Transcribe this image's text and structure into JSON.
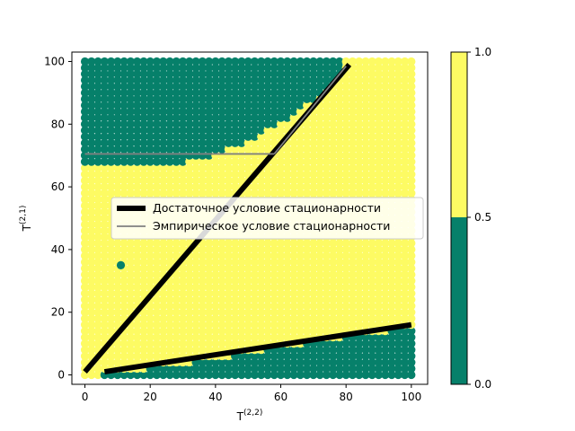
{
  "chart_data": {
    "type": "scatter",
    "xlabel": "T",
    "xlabel_sup": "(2,2)",
    "ylabel": "T",
    "ylabel_sup": "(2,1)",
    "xlim": [
      -4,
      105
    ],
    "ylim": [
      -3,
      103
    ],
    "xticks": [
      0,
      20,
      40,
      60,
      80,
      100
    ],
    "yticks": [
      0,
      20,
      40,
      60,
      80,
      100
    ],
    "grid": false,
    "legend_placement": "center",
    "colors": {
      "stationary": "#fdfb63",
      "nonstationary": "#06806a",
      "sufficient_line": "#000000",
      "empirical_line": "#808080"
    },
    "scatter_grid": {
      "x_range": [
        0,
        100
      ],
      "y_range": [
        0,
        100
      ],
      "step": 2,
      "values": "1 = stationary (yellow), 0 = nonstationary (green)"
    },
    "series": [
      {
        "name": "Достаточное условие стационарности",
        "kind": "line",
        "segments": [
          [
            [
              0,
              1
            ],
            [
              81,
              99
            ]
          ],
          [
            [
              6,
              1
            ],
            [
              100,
              16
            ]
          ]
        ]
      },
      {
        "name": "Эмпирическое условие стационарности",
        "kind": "line",
        "segments": [
          [
            [
              0,
              70.5
            ],
            [
              58,
              70.5
            ]
          ],
          [
            [
              58,
              70.5
            ],
            [
              80,
              98.5
            ]
          ]
        ]
      }
    ],
    "nonstationary_top_boundary": [
      [
        0,
        67
      ],
      [
        10,
        67
      ],
      [
        22,
        67
      ],
      [
        30,
        68
      ],
      [
        38,
        70
      ],
      [
        46,
        73
      ],
      [
        52,
        76
      ],
      [
        58,
        80
      ],
      [
        64,
        83
      ],
      [
        70,
        88
      ],
      [
        74,
        92
      ],
      [
        78,
        96
      ],
      [
        78,
        100
      ]
    ],
    "nonstationary_bottom_boundary": [
      [
        5,
        0.5
      ],
      [
        20,
        2
      ],
      [
        40,
        5
      ],
      [
        60,
        9
      ],
      [
        80,
        12
      ],
      [
        100,
        15
      ]
    ],
    "isolated_points": [
      [
        11,
        35
      ]
    ],
    "colorbar": {
      "ticks": [
        "0.0",
        "0.5",
        "1.0"
      ],
      "bands": [
        {
          "from": 0.0,
          "to": 0.5,
          "color": "#06806a"
        },
        {
          "from": 0.5,
          "to": 1.0,
          "color": "#fdfb63"
        }
      ]
    }
  }
}
